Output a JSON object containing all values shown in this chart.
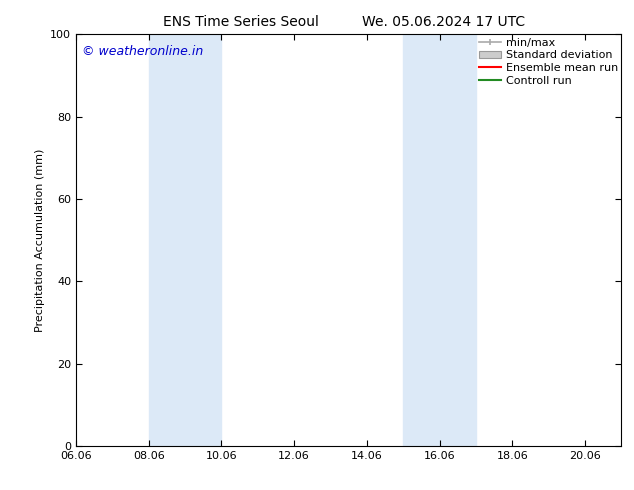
{
  "title_left": "ENS Time Series Seoul",
  "title_right": "We. 05.06.2024 17 UTC",
  "ylabel": "Precipitation Accumulation (mm)",
  "watermark": "© weatheronline.in",
  "watermark_color": "#0000cc",
  "xlim_left": 6.06,
  "xlim_right": 21.06,
  "ylim_bottom": 0,
  "ylim_top": 100,
  "xtick_labels": [
    "06.06",
    "08.06",
    "10.06",
    "12.06",
    "14.06",
    "16.06",
    "18.06",
    "20.06"
  ],
  "xtick_positions": [
    6.06,
    8.06,
    10.06,
    12.06,
    14.06,
    16.06,
    18.06,
    20.06
  ],
  "ytick_labels": [
    "0",
    "20",
    "40",
    "60",
    "80",
    "100"
  ],
  "ytick_positions": [
    0,
    20,
    40,
    60,
    80,
    100
  ],
  "shaded_bands": [
    {
      "x_start": 8.06,
      "x_end": 10.06
    },
    {
      "x_start": 15.06,
      "x_end": 17.06
    }
  ],
  "band_color": "#dce9f7",
  "legend_entries": [
    {
      "label": "min/max",
      "color": "#aaaaaa",
      "type": "errorbar"
    },
    {
      "label": "Standard deviation",
      "color": "#cccccc",
      "type": "box"
    },
    {
      "label": "Ensemble mean run",
      "color": "#ff0000",
      "type": "line"
    },
    {
      "label": "Controll run",
      "color": "#228b22",
      "type": "line"
    }
  ],
  "background_color": "#ffffff",
  "font_size": 8,
  "title_font_size": 10,
  "ylabel_fontsize": 8
}
